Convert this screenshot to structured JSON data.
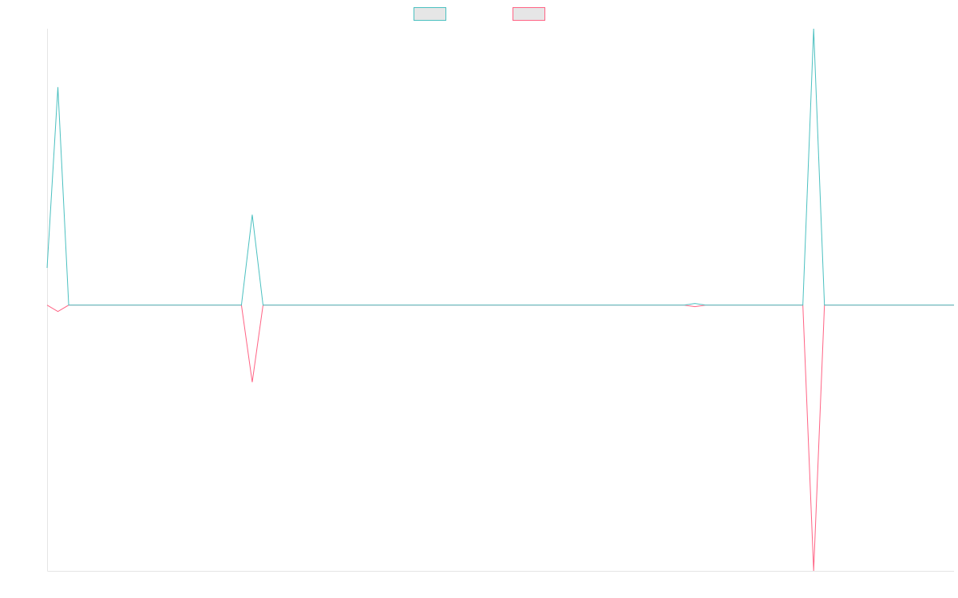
{
  "chart_data": {
    "type": "line",
    "x": [
      0,
      1,
      2,
      3,
      4,
      5,
      6,
      7,
      8,
      9,
      10,
      11,
      12,
      13,
      14,
      15,
      16,
      17,
      18,
      19,
      20,
      21,
      22,
      23,
      24,
      25,
      26,
      27,
      28,
      29,
      30,
      31,
      32,
      33,
      34,
      35,
      36,
      37,
      38,
      39,
      40,
      41,
      42,
      43,
      44,
      45,
      46,
      47,
      48,
      49,
      50,
      51,
      52,
      53,
      54,
      55,
      56,
      57,
      58,
      59,
      60,
      61,
      62,
      63,
      64,
      65,
      66,
      67,
      68,
      69,
      70,
      71,
      72,
      73,
      74,
      75,
      76,
      77,
      78,
      79,
      80,
      81,
      82,
      83,
      84
    ],
    "ylim": [
      -50,
      52
    ],
    "grid": false,
    "legend": "top-center",
    "series": [
      {
        "color": "#4bc0c0",
        "values": [
          7,
          41,
          0,
          0,
          0,
          0,
          0,
          0,
          0,
          0,
          0,
          0,
          0,
          0,
          0,
          0,
          0,
          0,
          0,
          17,
          0,
          0,
          0,
          0,
          0,
          0,
          0,
          0,
          0,
          0,
          0,
          0,
          0,
          0,
          0,
          0,
          0,
          0,
          0,
          0,
          0,
          0,
          0,
          0,
          0,
          0,
          0,
          0,
          0,
          0,
          0,
          0,
          0,
          0,
          0,
          0,
          0,
          0,
          0,
          0,
          0.3,
          0,
          0,
          0,
          0,
          0,
          0,
          0,
          0,
          0,
          0,
          52,
          0,
          0,
          0,
          0,
          0,
          0,
          0,
          0,
          0,
          0,
          0,
          0,
          0
        ]
      },
      {
        "color": "#ff6384",
        "values": [
          0,
          -1.2,
          0,
          0,
          0,
          0,
          0,
          0,
          0,
          0,
          0,
          0,
          0,
          0,
          0,
          0,
          0,
          0,
          0,
          -14.5,
          0,
          0,
          0,
          0,
          0,
          0,
          0,
          0,
          0,
          0,
          0,
          0,
          0,
          0,
          0,
          0,
          0,
          0,
          0,
          0,
          0,
          0,
          0,
          0,
          0,
          0,
          0,
          0,
          0,
          0,
          0,
          0,
          0,
          0,
          0,
          0,
          0,
          0,
          0,
          0,
          -0.3,
          0,
          0,
          0,
          0,
          0,
          0,
          0,
          0,
          0,
          0,
          -50,
          0,
          0,
          0,
          0,
          0,
          0,
          0,
          0,
          0,
          0,
          0,
          0,
          0
        ]
      }
    ]
  }
}
